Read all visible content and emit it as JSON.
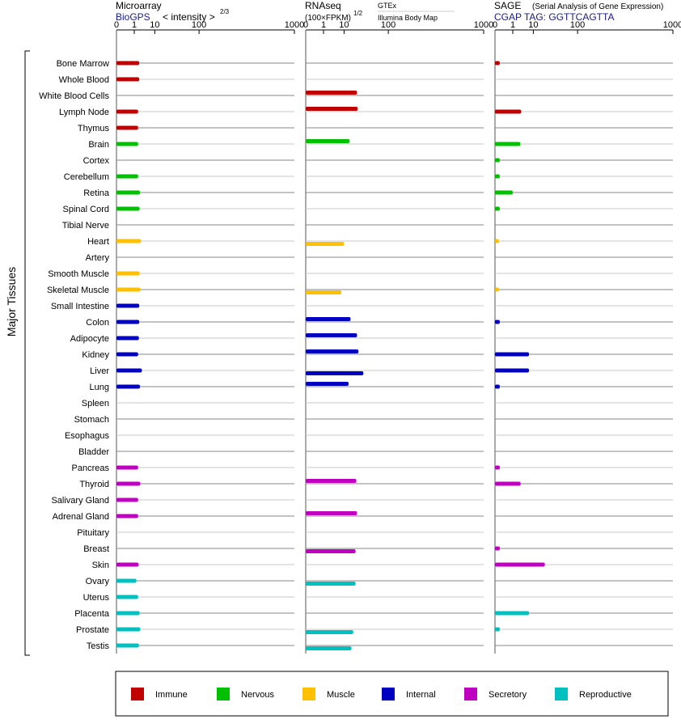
{
  "chart_data": {
    "type": "bar",
    "orientation": "horizontal",
    "x_scale": "power",
    "group_label": "Major Tissues",
    "categories": [
      "Bone Marrow",
      "Whole Blood",
      "White Blood Cells",
      "Lymph Node",
      "Thymus",
      "Brain",
      "Cortex",
      "Cerebellum",
      "Retina",
      "Spinal Cord",
      "Tibial Nerve",
      "Heart",
      "Artery",
      "Smooth Muscle",
      "Skeletal Muscle",
      "Small Intestine",
      "Colon",
      "Adipocyte",
      "Kidney",
      "Liver",
      "Lung",
      "Spleen",
      "Stomach",
      "Esophagus",
      "Bladder",
      "Pancreas",
      "Thyroid",
      "Salivary Gland",
      "Adrenal Gland",
      "Pituitary",
      "Breast",
      "Skin",
      "Ovary",
      "Uterus",
      "Placenta",
      "Prostate",
      "Testis"
    ],
    "category_groups": [
      "Immune",
      "Immune",
      "Immune",
      "Immune",
      "Immune",
      "Nervous",
      "Nervous",
      "Nervous",
      "Nervous",
      "Nervous",
      "Nervous",
      "Muscle",
      "Muscle",
      "Muscle",
      "Muscle",
      "Internal",
      "Internal",
      "Internal",
      "Internal",
      "Internal",
      "Internal",
      "Internal",
      "Internal",
      "Internal",
      "Internal",
      "Secretory",
      "Secretory",
      "Secretory",
      "Secretory",
      "Secretory",
      "Secretory",
      "Secretory",
      "Reproductive",
      "Reproductive",
      "Reproductive",
      "Reproductive",
      "Reproductive"
    ],
    "legend": [
      {
        "name": "Immune",
        "color": "#c00000"
      },
      {
        "name": "Nervous",
        "color": "#00c000"
      },
      {
        "name": "Muscle",
        "color": "#ffc000"
      },
      {
        "name": "Internal",
        "color": "#0000c0"
      },
      {
        "name": "Secretory",
        "color": "#c000c0"
      },
      {
        "name": "Reproductive",
        "color": "#00c0c0"
      }
    ],
    "panels": [
      {
        "title": "Microarray",
        "subtitle_source": "BioGPS",
        "subtitle_metric": "< intensity >",
        "subtitle_exponent": "2/3",
        "ticks": [
          "0",
          "1",
          "10",
          "100",
          "1000"
        ],
        "tick_values": [
          0,
          1,
          10,
          100,
          1000
        ],
        "xlim": [
          0,
          1000
        ],
        "series": [
          {
            "name": "BioGPS",
            "values": [
              2.1,
              2.1,
              null,
              1.8,
              1.8,
              1.8,
              null,
              1.8,
              2.3,
              2.2,
              null,
              2.6,
              null,
              2.2,
              2.4,
              2.1,
              2.1,
              2.0,
              1.8,
              2.9,
              2.3,
              null,
              null,
              null,
              null,
              1.8,
              2.4,
              1.8,
              1.8,
              null,
              null,
              1.9,
              1.4,
              1.8,
              2.2,
              2.4,
              2.0
            ]
          }
        ]
      },
      {
        "title": "RNAseq",
        "subtitle_metric": "(100×FPKM)",
        "subtitle_exponent": "1/2",
        "source_labels": [
          "GTEx",
          "Illumina Body Map"
        ],
        "ticks": [
          "0",
          "1",
          "10",
          "100",
          "1000"
        ],
        "tick_values": [
          0,
          1,
          10,
          100,
          1000
        ],
        "xlim": [
          0,
          1000
        ],
        "series": [
          {
            "name": "GTEx",
            "values": [
              null,
              null,
              24,
              25,
              null,
              15,
              null,
              null,
              null,
              null,
              null,
              null,
              null,
              null,
              null,
              null,
              16,
              24,
              26,
              null,
              14,
              null,
              null,
              null,
              null,
              null,
              23,
              null,
              24,
              null,
              null,
              null,
              null,
              null,
              null,
              null,
              null
            ]
          },
          {
            "name": "Illumina Body Map",
            "values": [
              null,
              null,
              null,
              null,
              null,
              null,
              null,
              null,
              null,
              null,
              null,
              10,
              null,
              null,
              8,
              null,
              null,
              null,
              null,
              34,
              null,
              null,
              null,
              null,
              null,
              null,
              null,
              null,
              null,
              null,
              22,
              null,
              22,
              null,
              null,
              19,
              17
            ]
          }
        ]
      },
      {
        "title": "SAGE",
        "title_note": "(Serial Analysis of Gene Expression)",
        "subtitle_source": "CGAP TAG: GGTTCAGTTA",
        "ticks": [
          "0",
          "1",
          "10",
          "100",
          "1000"
        ],
        "tick_values": [
          0,
          1,
          10,
          100,
          1000
        ],
        "xlim": [
          0,
          1000
        ],
        "series": [
          {
            "name": "CGAP SAGE",
            "values": [
              0.02,
              null,
              null,
              3.2,
              null,
              2.9,
              0.02,
              0.02,
              1.0,
              0.02,
              null,
              0.01,
              null,
              null,
              0.01,
              null,
              0.02,
              null,
              7.0,
              7.0,
              0.02,
              null,
              null,
              null,
              null,
              0.02,
              3.0,
              null,
              null,
              null,
              0.02,
              22,
              null,
              null,
              7.0,
              0.02,
              null
            ]
          }
        ]
      }
    ]
  }
}
